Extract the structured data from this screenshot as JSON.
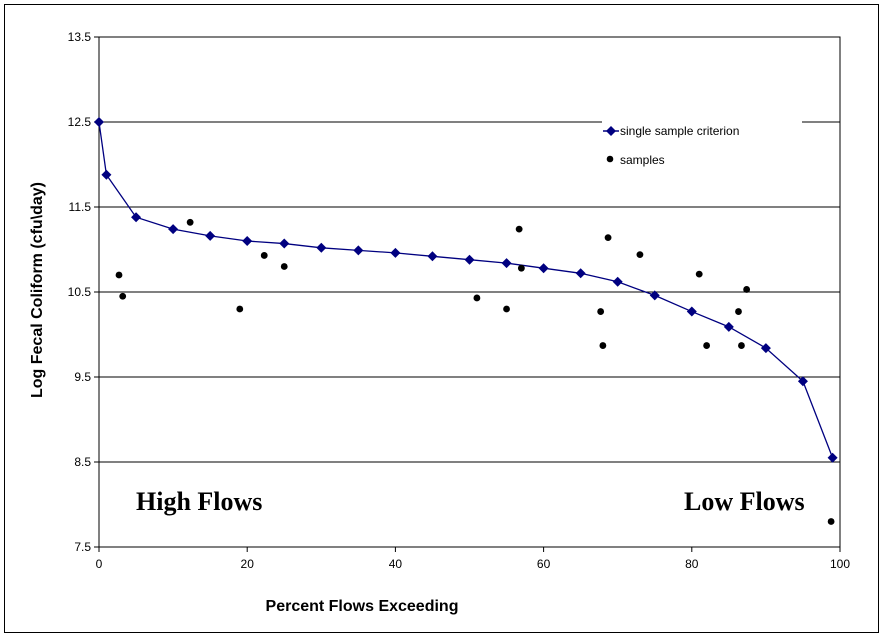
{
  "chart_data": {
    "type": "scatter",
    "title": "",
    "xlabel": "Percent Flows Exceeding",
    "ylabel": "Log Fecal Coliform (cfu\\day)",
    "xlim": [
      0,
      100
    ],
    "ylim": [
      7.5,
      13.5
    ],
    "x_ticks": [
      "0",
      "20",
      "40",
      "60",
      "80",
      "100"
    ],
    "y_ticks": [
      "7.5",
      "8.5",
      "9.5",
      "10.5",
      "11.5",
      "12.5",
      "13.5"
    ],
    "grid": "horizontal",
    "legend_position": "top-right",
    "annotations": [
      "High Flows",
      "Low Flows"
    ],
    "series": [
      {
        "name": "single sample criterion",
        "kind": "line-marker",
        "color": "#000080",
        "x": [
          0,
          1,
          5,
          10,
          15,
          20,
          25,
          30,
          35,
          40,
          45,
          50,
          55,
          60,
          65,
          70,
          75,
          80,
          85,
          90,
          95,
          99
        ],
        "y": [
          12.5,
          11.88,
          11.38,
          11.24,
          11.16,
          11.1,
          11.07,
          11.02,
          10.99,
          10.96,
          10.92,
          10.88,
          10.84,
          10.78,
          10.72,
          10.62,
          10.46,
          10.27,
          10.09,
          9.84,
          9.45,
          8.55
        ]
      },
      {
        "name": "samples",
        "kind": "points",
        "color": "#000000",
        "x": [
          2.7,
          3.2,
          12.3,
          19,
          22.3,
          25,
          51,
          55,
          56.7,
          57,
          67.7,
          68,
          68.7,
          73,
          81,
          82,
          86.3,
          86.7,
          87.4,
          98.8
        ],
        "y": [
          10.7,
          10.45,
          11.32,
          10.3,
          10.93,
          10.8,
          10.43,
          10.3,
          11.24,
          10.78,
          10.27,
          9.87,
          11.14,
          10.94,
          10.71,
          9.87,
          10.27,
          9.87,
          10.53,
          7.8
        ]
      }
    ]
  }
}
